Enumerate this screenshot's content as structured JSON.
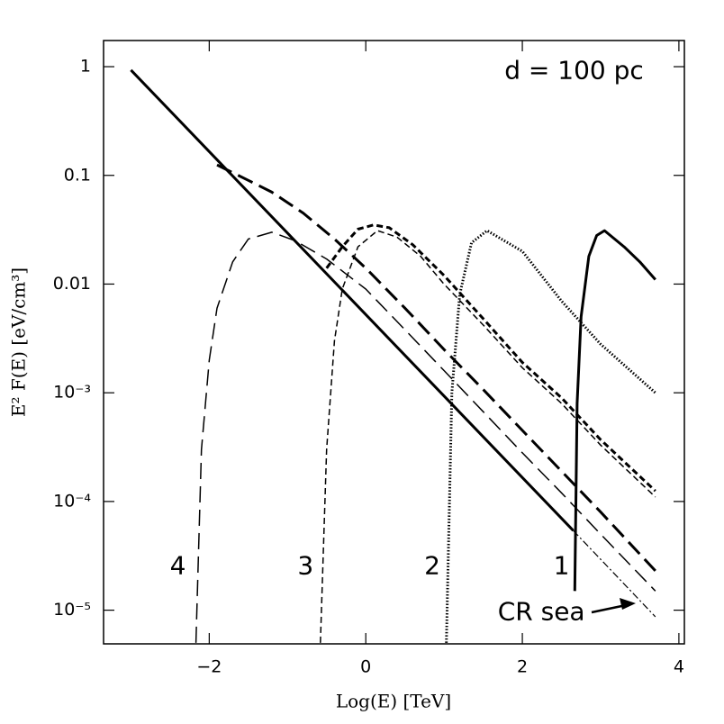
{
  "chart_data": {
    "type": "line",
    "xlabel": "Log(E) [TeV]",
    "ylabel": "E² F(E) [eV/cm³]",
    "xlim": [
      -3.35,
      4.07
    ],
    "ylim": [
      4.9e-06,
      1.74
    ],
    "log_y": true,
    "xticks": [
      {
        "value": -2,
        "label": "−2"
      },
      0,
      2,
      4
    ],
    "yticks": [
      1,
      0.1,
      0.01,
      {
        "value": 0.001,
        "label": "10⁻³"
      },
      {
        "value": 0.0001,
        "label": "10⁻⁴"
      },
      {
        "value": 1e-05,
        "label": "10⁻⁵"
      }
    ],
    "series": [
      {
        "color": "#000",
        "style": "solid",
        "width": 3,
        "x": [
          -3,
          2.65
        ],
        "values": [
          0.93,
          5.4e-05
        ]
      },
      {
        "color": "#000",
        "style": "dash-dot",
        "width": 1.2,
        "x": [
          2.65,
          3.7
        ],
        "values": [
          5.4e-05,
          8.7e-06
        ]
      },
      {
        "color": "#000",
        "style": "solid",
        "width": 3,
        "x": [
          2.67,
          2.7,
          2.75,
          2.85,
          2.95,
          3.05,
          3.3,
          3.5,
          3.7
        ],
        "values": [
          1.5e-05,
          0.0008,
          0.005,
          0.018,
          0.028,
          0.031,
          0.022,
          0.016,
          0.011
        ]
      },
      {
        "color": "#000",
        "style": "dotted",
        "width": 3,
        "x": [
          1.03,
          1.1,
          1.2,
          1.35,
          1.55,
          2,
          2.5,
          3,
          3.7
        ],
        "values": [
          5e-06,
          0.001,
          0.008,
          0.024,
          0.031,
          0.02,
          0.007,
          0.0028,
          0.001
        ]
      },
      {
        "color": "#000",
        "style": "short-dash",
        "width": 1.5,
        "x": [
          -0.58,
          -0.5,
          -0.4,
          -0.3,
          -0.1,
          0.15,
          0.4,
          0.7,
          1,
          1.5,
          2,
          2.5,
          3,
          3.7
        ],
        "values": [
          5e-06,
          0.0003,
          0.003,
          0.009,
          0.022,
          0.031,
          0.027,
          0.018,
          0.01,
          0.0042,
          0.0017,
          0.0008,
          0.00033,
          0.00011
        ]
      },
      {
        "color": "#000",
        "style": "short-dash",
        "width": 3,
        "x": [
          -0.5,
          -0.3,
          -0.1,
          0.1,
          0.3,
          0.6,
          1,
          1.5,
          2,
          2.5,
          3,
          3.7
        ],
        "values": [
          0.014,
          0.022,
          0.032,
          0.035,
          0.033,
          0.023,
          0.012,
          0.0048,
          0.0019,
          0.0009,
          0.00037,
          0.000125
        ]
      },
      {
        "color": "#000",
        "style": "long-dash",
        "width": 1.5,
        "x": [
          -2.17,
          -2.1,
          -2,
          -1.9,
          -1.7,
          -1.5,
          -1.2,
          -0.9,
          -0.5,
          0,
          0.5,
          1,
          1.5,
          2,
          2.5,
          3,
          3.7
        ],
        "values": [
          5e-06,
          0.0003,
          0.002,
          0.006,
          0.016,
          0.026,
          0.03,
          0.025,
          0.017,
          0.009,
          0.0038,
          0.0016,
          0.00067,
          0.00028,
          0.00012,
          5e-05,
          1.5e-05
        ]
      },
      {
        "color": "#000",
        "style": "long-dash",
        "width": 3,
        "x": [
          -1.9,
          -1.5,
          -1.2,
          -0.8,
          -0.4,
          0,
          0.5,
          1,
          1.5,
          2,
          2.5,
          3,
          3.7
        ],
        "values": [
          0.125,
          0.09,
          0.07,
          0.045,
          0.026,
          0.014,
          0.006,
          0.0025,
          0.00107,
          0.00045,
          0.00019,
          8e-05,
          2.3e-05
        ]
      }
    ],
    "annotations": [
      {
        "text": "d = 100 pc",
        "x": 3.55,
        "y": 0.9,
        "anchor": "end"
      },
      {
        "text": "4",
        "x": -2.4,
        "y": 2.5e-05,
        "anchor": "middle"
      },
      {
        "text": "3",
        "x": -0.77,
        "y": 2.5e-05,
        "anchor": "middle"
      },
      {
        "text": "2",
        "x": 0.85,
        "y": 2.5e-05,
        "anchor": "middle"
      },
      {
        "text": "1",
        "x": 2.5,
        "y": 2.5e-05,
        "anchor": "middle"
      },
      {
        "text": "CR sea",
        "x": 2.8,
        "y": 9.5e-06,
        "anchor": "end"
      }
    ]
  }
}
